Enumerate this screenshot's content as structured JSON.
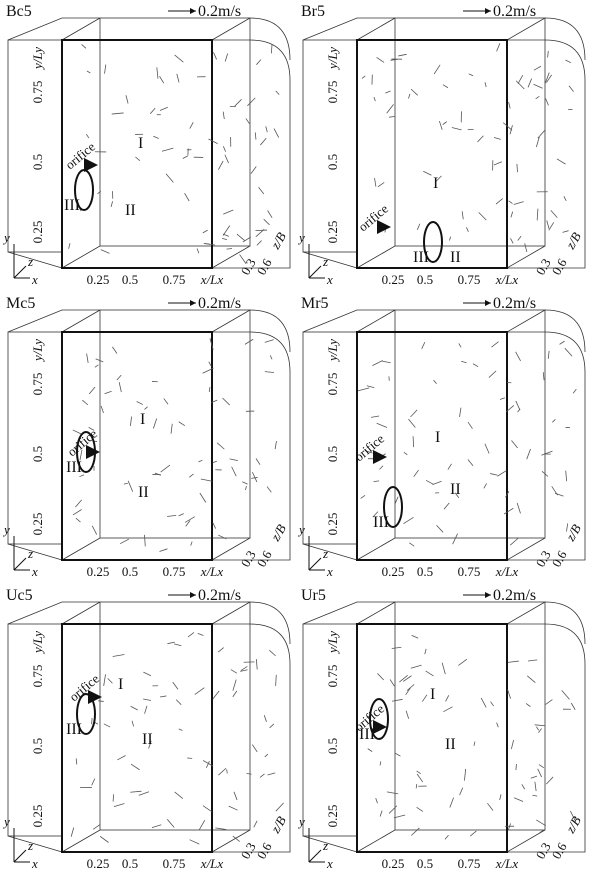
{
  "panels": [
    {
      "name": "Bc5",
      "scale": "0.2m/s"
    },
    {
      "name": "Br5",
      "scale": "0.2m/s"
    },
    {
      "name": "Mc5",
      "scale": "0.2m/s"
    },
    {
      "name": "Mr5",
      "scale": "0.2m/s"
    },
    {
      "name": "Uc5",
      "scale": "0.2m/s"
    },
    {
      "name": "Ur5",
      "scale": "0.2m/s"
    }
  ],
  "axes": {
    "y_label": "y/Ly",
    "y_ticks": [
      "0.25",
      "0.5",
      "0.75"
    ],
    "x_label": "x/Lx",
    "x_ticks": [
      "0.25",
      "0.5",
      "0.75"
    ],
    "z_label": "z/B",
    "z_ticks": [
      "0.3",
      "0.6"
    ],
    "triad": [
      "x",
      "y",
      "z"
    ]
  },
  "annotations": {
    "orifice": "orifice",
    "vortices": [
      "I",
      "II",
      "III"
    ]
  }
}
